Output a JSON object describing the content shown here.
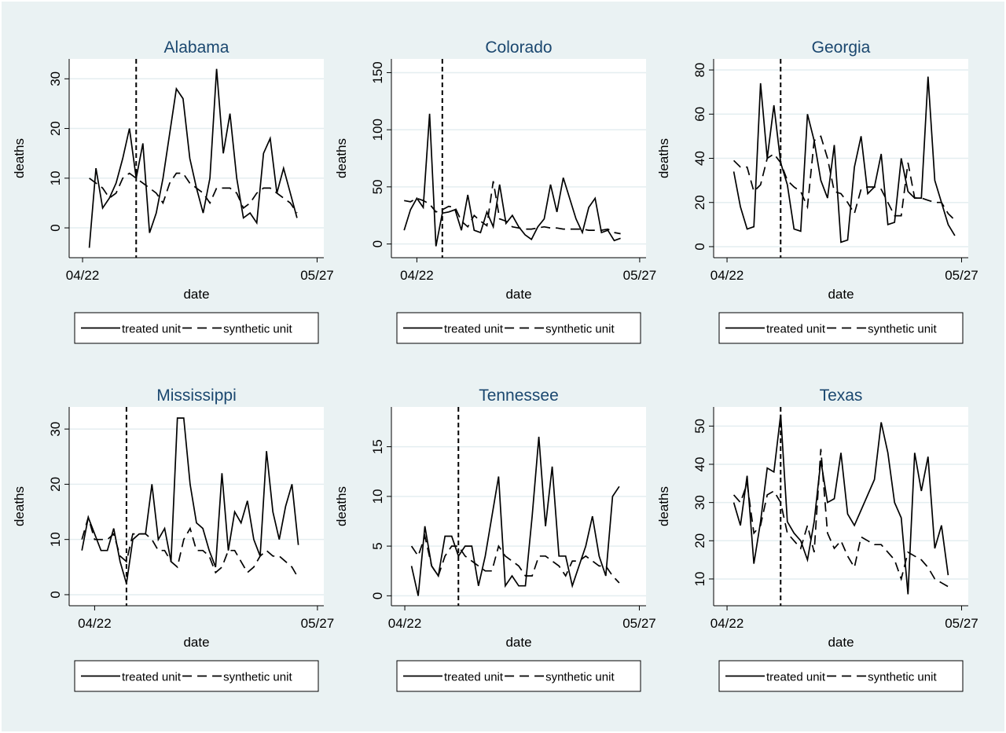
{
  "chart_data": [
    {
      "type": "line",
      "title": "Alabama",
      "xlabel": "date",
      "ylabel": "deaths",
      "vline": "04/30",
      "legend": "bottom",
      "grid": true,
      "xlim": [
        "04/20",
        "05/28"
      ],
      "xticks": [
        "04/22",
        "05/27"
      ],
      "ylim": [
        -6,
        34
      ],
      "yticks": [
        0,
        10,
        20,
        30
      ],
      "x": [
        "04/23",
        "04/24",
        "04/25",
        "04/26",
        "04/27",
        "04/28",
        "04/29",
        "04/30",
        "05/01",
        "05/02",
        "05/03",
        "05/04",
        "05/05",
        "05/06",
        "05/07",
        "05/08",
        "05/09",
        "05/10",
        "05/11",
        "05/12",
        "05/13",
        "05/14",
        "05/15",
        "05/16",
        "05/17",
        "05/18",
        "05/19",
        "05/20",
        "05/21",
        "05/22",
        "05/23",
        "05/24"
      ],
      "series": [
        {
          "name": "treated unit",
          "color": "#000000",
          "style": "solid",
          "values": [
            -4,
            12,
            4,
            6,
            9,
            14,
            20,
            10,
            17,
            -1,
            3,
            10,
            19,
            28,
            26,
            14,
            8,
            3,
            10,
            32,
            15,
            23,
            10,
            2,
            3,
            1,
            15,
            18,
            7,
            12,
            7,
            2
          ]
        },
        {
          "name": "synthetic unit",
          "color": "#000000",
          "style": "dashed",
          "values": [
            10,
            9,
            8,
            6,
            7,
            10,
            11,
            10,
            9,
            8,
            7,
            5,
            9,
            11,
            11,
            9,
            8,
            7,
            5,
            8,
            8,
            8,
            7,
            4,
            5,
            7,
            8,
            8,
            7,
            6,
            5,
            3
          ]
        }
      ]
    },
    {
      "type": "line",
      "title": "Colorado",
      "xlabel": "date",
      "ylabel": "deaths",
      "vline": "04/26",
      "legend": "bottom",
      "grid": true,
      "xlim": [
        "04/18",
        "05/28"
      ],
      "xticks": [
        "04/22",
        "05/27"
      ],
      "ylim": [
        -12,
        162
      ],
      "yticks": [
        0,
        50,
        100,
        150
      ],
      "x": [
        "04/20",
        "04/21",
        "04/22",
        "04/23",
        "04/24",
        "04/25",
        "04/26",
        "04/27",
        "04/28",
        "04/29",
        "04/30",
        "05/01",
        "05/02",
        "05/03",
        "05/04",
        "05/05",
        "05/06",
        "05/07",
        "05/08",
        "05/09",
        "05/10",
        "05/11",
        "05/12",
        "05/13",
        "05/14",
        "05/15",
        "05/16",
        "05/17",
        "05/18",
        "05/19",
        "05/20",
        "05/21",
        "05/22",
        "05/23",
        "05/24"
      ],
      "series": [
        {
          "name": "treated unit",
          "color": "#000000",
          "style": "solid",
          "values": [
            12,
            30,
            40,
            32,
            114,
            -2,
            27,
            28,
            30,
            12,
            43,
            12,
            10,
            28,
            15,
            52,
            18,
            25,
            15,
            8,
            4,
            15,
            22,
            52,
            28,
            58,
            40,
            22,
            10,
            32,
            40,
            10,
            12,
            3,
            5
          ]
        },
        {
          "name": "synthetic unit",
          "color": "#000000",
          "style": "dashed",
          "values": [
            38,
            37,
            40,
            38,
            35,
            28,
            30,
            33,
            32,
            20,
            15,
            25,
            20,
            16,
            55,
            22,
            20,
            15,
            14,
            13,
            13,
            14,
            15,
            14,
            14,
            13,
            13,
            13,
            13,
            12,
            12,
            12,
            13,
            10,
            9
          ]
        }
      ]
    },
    {
      "type": "line",
      "title": "Georgia",
      "xlabel": "date",
      "ylabel": "deaths",
      "vline": "04/30",
      "legend": "bottom",
      "grid": true,
      "xlim": [
        "04/20",
        "05/28"
      ],
      "xticks": [
        "04/22",
        "05/27"
      ],
      "ylim": [
        -5,
        85
      ],
      "yticks": [
        0,
        20,
        40,
        60,
        80
      ],
      "x": [
        "04/23",
        "04/24",
        "04/25",
        "04/26",
        "04/27",
        "04/28",
        "04/29",
        "04/30",
        "05/01",
        "05/02",
        "05/03",
        "05/04",
        "05/05",
        "05/06",
        "05/07",
        "05/08",
        "05/09",
        "05/10",
        "05/11",
        "05/12",
        "05/13",
        "05/14",
        "05/15",
        "05/16",
        "05/17",
        "05/18",
        "05/19",
        "05/20",
        "05/21",
        "05/22",
        "05/23",
        "05/24",
        "05/25",
        "05/26"
      ],
      "series": [
        {
          "name": "treated unit",
          "color": "#000000",
          "style": "solid",
          "values": [
            34,
            18,
            8,
            9,
            74,
            40,
            64,
            38,
            28,
            8,
            7,
            60,
            48,
            30,
            22,
            46,
            2,
            3,
            36,
            50,
            24,
            27,
            42,
            10,
            11,
            40,
            25,
            22,
            22,
            77,
            30,
            20,
            10,
            5
          ]
        },
        {
          "name": "synthetic unit",
          "color": "#000000",
          "style": "dashed",
          "values": [
            39,
            36,
            36,
            25,
            28,
            40,
            42,
            38,
            30,
            27,
            25,
            18,
            48,
            50,
            40,
            25,
            24,
            20,
            15,
            26,
            27,
            27,
            26,
            20,
            14,
            14,
            38,
            22,
            22,
            21,
            20,
            20,
            15,
            12
          ]
        }
      ]
    },
    {
      "type": "line",
      "title": "Mississippi",
      "xlabel": "date",
      "ylabel": "deaths",
      "vline": "04/27",
      "legend": "bottom",
      "grid": true,
      "xlim": [
        "04/18",
        "05/28"
      ],
      "xticks": [
        "04/22",
        "05/27"
      ],
      "ylim": [
        -2,
        34
      ],
      "yticks": [
        0,
        10,
        20,
        30
      ],
      "x": [
        "04/20",
        "04/21",
        "04/22",
        "04/23",
        "04/24",
        "04/25",
        "04/26",
        "04/27",
        "04/28",
        "04/29",
        "04/30",
        "05/01",
        "05/02",
        "05/03",
        "05/04",
        "05/05",
        "05/06",
        "05/07",
        "05/08",
        "05/09",
        "05/10",
        "05/11",
        "05/12",
        "05/13",
        "05/14",
        "05/15",
        "05/16",
        "05/17",
        "05/18",
        "05/19",
        "05/20",
        "05/21",
        "05/22",
        "05/23",
        "05/24"
      ],
      "series": [
        {
          "name": "treated unit",
          "color": "#000000",
          "style": "solid",
          "values": [
            8,
            14,
            11,
            8,
            8,
            12,
            6,
            2,
            10,
            11,
            11,
            20,
            10,
            12,
            6,
            32,
            32,
            20,
            13,
            12,
            8,
            5,
            22,
            8,
            15,
            13,
            17,
            10,
            7,
            26,
            15,
            10,
            16,
            20,
            9
          ]
        },
        {
          "name": "synthetic unit",
          "color": "#000000",
          "style": "dashed",
          "values": [
            10,
            14,
            10,
            10,
            10,
            11,
            7,
            6,
            11,
            11,
            11,
            10,
            8,
            8,
            6,
            5,
            10,
            12,
            8,
            8,
            7,
            4,
            5,
            8,
            8,
            6,
            4,
            5,
            7,
            8,
            7,
            7,
            6,
            5,
            3
          ]
        }
      ]
    },
    {
      "type": "line",
      "title": "Tennessee",
      "xlabel": "date",
      "ylabel": "deaths",
      "vline": "04/30",
      "legend": "bottom",
      "grid": true,
      "xlim": [
        "04/20",
        "05/28"
      ],
      "xticks": [
        "04/22",
        "05/27"
      ],
      "ylim": [
        -1,
        19
      ],
      "yticks": [
        0,
        5,
        10,
        15
      ],
      "x": [
        "04/23",
        "04/24",
        "04/25",
        "04/26",
        "04/27",
        "04/28",
        "04/29",
        "04/30",
        "05/01",
        "05/02",
        "05/03",
        "05/04",
        "05/05",
        "05/06",
        "05/07",
        "05/08",
        "05/09",
        "05/10",
        "05/11",
        "05/12",
        "05/13",
        "05/14",
        "05/15",
        "05/16",
        "05/17",
        "05/18",
        "05/19",
        "05/20",
        "05/21",
        "05/22",
        "05/23",
        "05/24"
      ],
      "series": [
        {
          "name": "treated unit",
          "color": "#000000",
          "style": "solid",
          "values": [
            3,
            0,
            7,
            3,
            2,
            6,
            6,
            4,
            5,
            5,
            1,
            4,
            8,
            12,
            1,
            2,
            1,
            1,
            8,
            16,
            7,
            13,
            4,
            4,
            1,
            3,
            5,
            8,
            4,
            2,
            10,
            11
          ]
        },
        {
          "name": "synthetic unit",
          "color": "#000000",
          "style": "dashed",
          "values": [
            5,
            4,
            6,
            3,
            2,
            4,
            5,
            5,
            4,
            3.5,
            3,
            2.5,
            2.5,
            5,
            4,
            3.5,
            3,
            2,
            2,
            4,
            4,
            3.5,
            3,
            2,
            3.5,
            3.5,
            4,
            3.5,
            3,
            3,
            2,
            1.3
          ]
        }
      ]
    },
    {
      "type": "line",
      "title": "Texas",
      "xlabel": "date",
      "ylabel": "deaths",
      "vline": "04/30",
      "legend": "bottom",
      "grid": true,
      "xlim": [
        "04/20",
        "05/28"
      ],
      "xticks": [
        "04/22",
        "05/27"
      ],
      "ylim": [
        3,
        55
      ],
      "yticks": [
        10,
        20,
        30,
        40,
        50
      ],
      "x": [
        "04/23",
        "04/24",
        "04/25",
        "04/26",
        "04/27",
        "04/28",
        "04/29",
        "04/30",
        "05/01",
        "05/02",
        "05/03",
        "05/04",
        "05/05",
        "05/06",
        "05/07",
        "05/08",
        "05/09",
        "05/10",
        "05/11",
        "05/12",
        "05/13",
        "05/14",
        "05/15",
        "05/16",
        "05/17",
        "05/18",
        "05/19",
        "05/20",
        "05/21",
        "05/22",
        "05/23",
        "05/24",
        "05/25"
      ],
      "series": [
        {
          "name": "treated unit",
          "color": "#000000",
          "style": "solid",
          "values": [
            30,
            24,
            37,
            14,
            25,
            39,
            38,
            53,
            25,
            22,
            20,
            15,
            25,
            41,
            30,
            31,
            43,
            27,
            24,
            28,
            32,
            36,
            51,
            43,
            30,
            26,
            6,
            43,
            33,
            42,
            18,
            24,
            11
          ]
        },
        {
          "name": "synthetic unit",
          "color": "#000000",
          "style": "dashed",
          "values": [
            32,
            30,
            35,
            22,
            24,
            32,
            33,
            30,
            22,
            20,
            18,
            24,
            17,
            44,
            22,
            18,
            20,
            16,
            13,
            21,
            20,
            19,
            19,
            17,
            15,
            10,
            17,
            16,
            15,
            13,
            10,
            9,
            8
          ]
        }
      ]
    }
  ]
}
